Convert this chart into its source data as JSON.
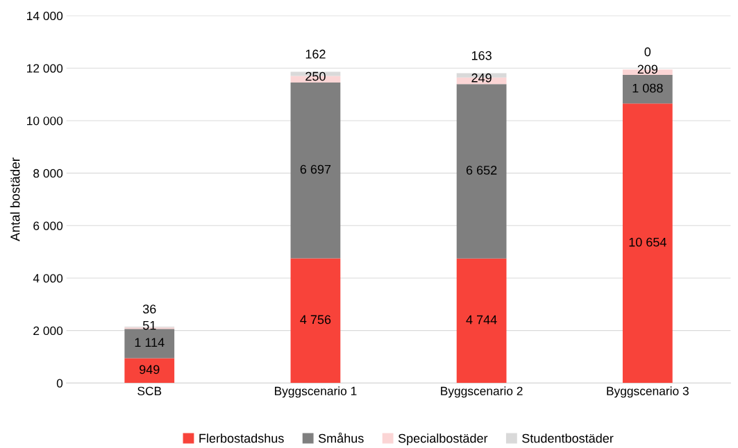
{
  "chart_data": {
    "type": "bar",
    "stacked": true,
    "ylabel": "Antal bostäder",
    "categories": [
      "SCB",
      "Byggscenario 1",
      "Byggscenario 2",
      "Byggscenario 3"
    ],
    "series": [
      {
        "name": "Flerbostadshus",
        "color": "#f8433a",
        "values": [
          949,
          4756,
          4744,
          10654
        ],
        "value_labels": [
          "949",
          "4 756",
          "4 744",
          "10 654"
        ]
      },
      {
        "name": "Småhus",
        "color": "#7f7f7f",
        "values": [
          1114,
          6697,
          6652,
          1088
        ],
        "value_labels": [
          "1 114",
          "6 697",
          "6 652",
          "1 088"
        ]
      },
      {
        "name": "Specialbostäder",
        "color": "#fbd5d5",
        "values": [
          51,
          250,
          249,
          209
        ],
        "value_labels": [
          "51",
          "250",
          "249",
          "209"
        ]
      },
      {
        "name": "Studentbostäder",
        "color": "#d9d9d9",
        "values": [
          36,
          162,
          163,
          0
        ],
        "value_labels": [
          "36",
          "162",
          "163",
          "0"
        ]
      }
    ],
    "ylim": [
      0,
      14000
    ],
    "yticks": [
      {
        "value": 0,
        "label": "0"
      },
      {
        "value": 2000,
        "label": "2 000"
      },
      {
        "value": 4000,
        "label": "4 000"
      },
      {
        "value": 6000,
        "label": "6 000"
      },
      {
        "value": 8000,
        "label": "8 000"
      },
      {
        "value": 10000,
        "label": "10 000"
      },
      {
        "value": 12000,
        "label": "12 000"
      },
      {
        "value": 14000,
        "label": "14 000"
      }
    ],
    "grid": "y",
    "legend": "bottom"
  }
}
